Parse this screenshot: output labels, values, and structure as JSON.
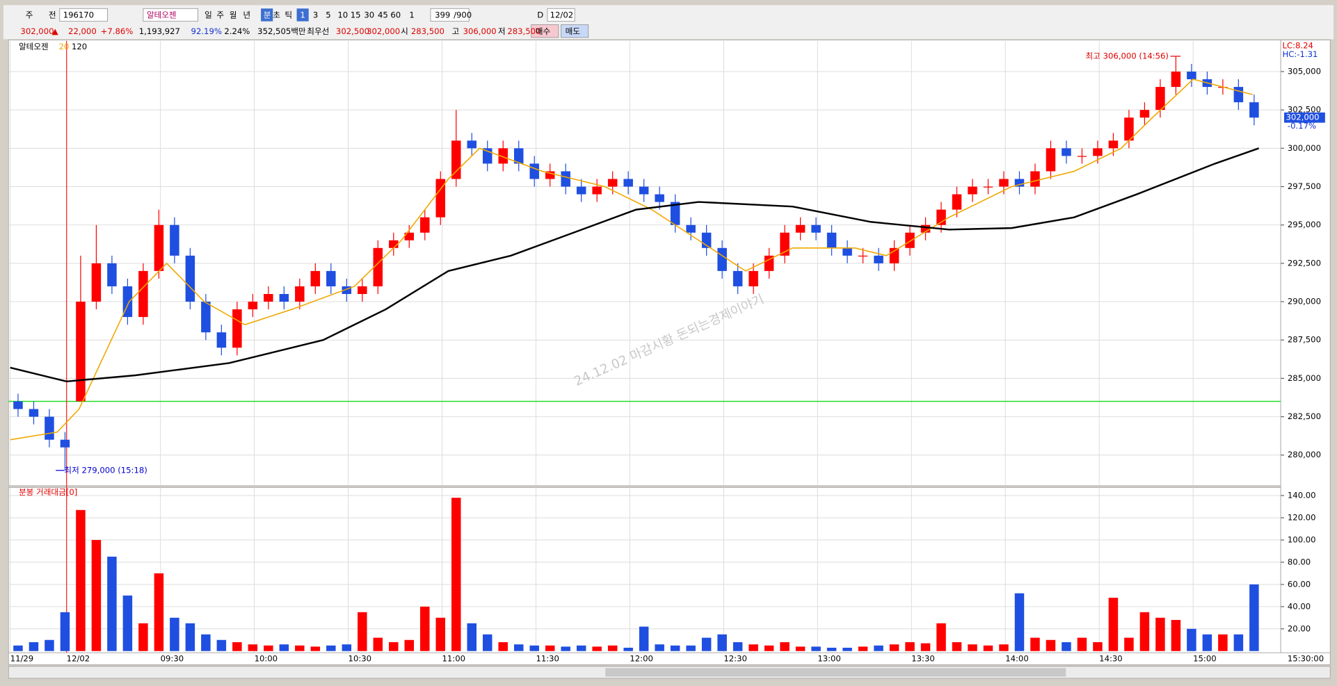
{
  "toolbar": {
    "row1": [
      "주",
      "전",
      "196170",
      "알테오젠",
      "일",
      "주",
      "월",
      "년",
      "분",
      "초",
      "틱",
      "1",
      "3",
      "5",
      "10",
      "15",
      "30",
      "45",
      "60",
      "1",
      "399",
      "/900",
      "D",
      "12/02"
    ],
    "row2": [
      "302,000",
      "▲",
      "22,000",
      "+7.86%",
      "1,193,927",
      "92.19%",
      "2.24%",
      "352,505백만",
      "최우선",
      "302,500",
      "302,000",
      "시",
      "283,500",
      "고",
      "306,000",
      "저",
      "283,500",
      "매수",
      "매도"
    ]
  },
  "chart_data": {
    "type": "candlestick",
    "legend_title": "알테오젠",
    "x": [
      0,
      5,
      10,
      15,
      20,
      25,
      30,
      35,
      40,
      45,
      50,
      55,
      60,
      65,
      70,
      75,
      80,
      85,
      90,
      95,
      100,
      105,
      110,
      115,
      120,
      125,
      130,
      135,
      140,
      145,
      150,
      155,
      160,
      165,
      170,
      175,
      180,
      185,
      190,
      195,
      200,
      205,
      210,
      215,
      220,
      225,
      230,
      235,
      240,
      245,
      250,
      255,
      260,
      265,
      270,
      275,
      280,
      285,
      290,
      295,
      300,
      305,
      310,
      315,
      320,
      325,
      330,
      335,
      340,
      345,
      350,
      355,
      360,
      365,
      370,
      375,
      380,
      385,
      390,
      395
    ],
    "open": [
      283500,
      283000,
      282500,
      281000,
      283500,
      290000,
      292500,
      291000,
      289000,
      292000,
      295000,
      293000,
      290000,
      288000,
      287000,
      289500,
      290000,
      290500,
      290000,
      291000,
      292000,
      291000,
      290500,
      291000,
      293500,
      294000,
      294500,
      295500,
      298000,
      300500,
      300000,
      299000,
      300000,
      299000,
      298000,
      298500,
      297500,
      297000,
      297500,
      298000,
      297500,
      297000,
      296500,
      295000,
      294500,
      293500,
      292000,
      291000,
      292000,
      293000,
      294500,
      295000,
      294500,
      293500,
      293000,
      293000,
      292500,
      293500,
      294500,
      295000,
      296000,
      297000,
      297500,
      297500,
      298000,
      297500,
      298500,
      300000,
      299500,
      299500,
      300000,
      300500,
      302000,
      302500,
      304000,
      305000,
      304500,
      304000,
      304000,
      303000
    ],
    "high": [
      284000,
      283500,
      283000,
      281500,
      293000,
      295000,
      293000,
      291500,
      292500,
      296000,
      295500,
      293500,
      290500,
      288500,
      290000,
      290500,
      291000,
      291000,
      291500,
      292500,
      292500,
      291500,
      291500,
      294000,
      294500,
      295000,
      296000,
      298500,
      302500,
      301000,
      300500,
      300500,
      300500,
      299500,
      299000,
      299000,
      298000,
      298000,
      298500,
      298500,
      298000,
      297500,
      297000,
      295500,
      295000,
      294000,
      292500,
      292500,
      293500,
      295000,
      295500,
      295500,
      295000,
      294000,
      293500,
      293500,
      294000,
      295000,
      295500,
      296500,
      297500,
      298000,
      298000,
      298500,
      298500,
      299000,
      300500,
      300500,
      300000,
      300500,
      301000,
      302500,
      303000,
      304500,
      306000,
      305500,
      305000,
      304500,
      304500,
      303500
    ],
    "low": [
      282500,
      282000,
      280500,
      279000,
      283500,
      289500,
      290500,
      288500,
      288500,
      291500,
      292500,
      289500,
      287500,
      286500,
      286500,
      289000,
      289500,
      289500,
      289500,
      290500,
      290500,
      290000,
      290000,
      290500,
      293000,
      293500,
      294000,
      295000,
      297500,
      299500,
      298500,
      298500,
      298500,
      297500,
      297500,
      297000,
      296500,
      296500,
      297000,
      297000,
      296500,
      296000,
      294500,
      294000,
      293000,
      291500,
      290500,
      290500,
      291500,
      292500,
      294000,
      294000,
      293000,
      292500,
      292500,
      292000,
      292000,
      293000,
      294000,
      294500,
      295500,
      296500,
      297000,
      297000,
      297000,
      297000,
      298000,
      299000,
      299000,
      299000,
      299500,
      300000,
      301500,
      302000,
      303500,
      304000,
      303500,
      303500,
      302500,
      301500
    ],
    "close": [
      283000,
      282500,
      281000,
      280500,
      290000,
      292500,
      291000,
      289000,
      292000,
      295000,
      293000,
      290000,
      288000,
      287000,
      289500,
      290000,
      290500,
      290000,
      291000,
      292000,
      291000,
      290500,
      291000,
      293500,
      294000,
      294500,
      295500,
      298000,
      300500,
      300000,
      299000,
      300000,
      299000,
      298000,
      298500,
      297500,
      297000,
      297500,
      298000,
      297500,
      297000,
      296500,
      295000,
      294500,
      293500,
      292000,
      291000,
      292000,
      293000,
      294500,
      295000,
      294500,
      293500,
      293000,
      293000,
      292500,
      293500,
      294500,
      295000,
      296000,
      297000,
      297500,
      297500,
      298000,
      297500,
      298500,
      300000,
      299500,
      299500,
      300000,
      300500,
      302000,
      302500,
      304000,
      305000,
      304500,
      304000,
      304000,
      303000,
      302000
    ],
    "up_color": "#ff0000",
    "down_color": "#1f4fe0",
    "xlim": [
      0,
      406
    ],
    "xticks": [
      {
        "value": 0,
        "label": "11/29"
      },
      {
        "value": 18,
        "label": "12/02"
      },
      {
        "value": 48,
        "label": "09:30"
      },
      {
        "value": 78,
        "label": "10:00"
      },
      {
        "value": 108,
        "label": "10:30"
      },
      {
        "value": 138,
        "label": "11:00"
      },
      {
        "value": 168,
        "label": "11:30"
      },
      {
        "value": 198,
        "label": "12:00"
      },
      {
        "value": 228,
        "label": "12:30"
      },
      {
        "value": 258,
        "label": "13:00"
      },
      {
        "value": 288,
        "label": "13:30"
      },
      {
        "value": 318,
        "label": "14:00"
      },
      {
        "value": 348,
        "label": "14:30"
      },
      {
        "value": 378,
        "label": "15:00"
      }
    ],
    "x_end_label": "15:30:00",
    "ylim": [
      278000,
      307000
    ],
    "yticks": [
      {
        "value": 280000,
        "label": "280,000"
      },
      {
        "value": 282500,
        "label": "282,500"
      },
      {
        "value": 285000,
        "label": "285,000"
      },
      {
        "value": 287500,
        "label": "287,500"
      },
      {
        "value": 290000,
        "label": "290,000"
      },
      {
        "value": 292500,
        "label": "292,500"
      },
      {
        "value": 295000,
        "label": "295,000"
      },
      {
        "value": 297500,
        "label": "297,500"
      },
      {
        "value": 300000,
        "label": "300,000"
      },
      {
        "value": 302500,
        "label": "302,500"
      },
      {
        "value": 305000,
        "label": "305,000"
      }
    ],
    "grid": true,
    "lines": [
      {
        "name": "20",
        "color": "#f0a800",
        "x": [
          0,
          15,
          22,
          38,
          50,
          62,
          75,
          90,
          110,
          125,
          140,
          150,
          170,
          190,
          205,
          220,
          235,
          250,
          270,
          280,
          300,
          320,
          340,
          355,
          365,
          378,
          397
        ],
        "values": [
          281000,
          281500,
          283000,
          290000,
          292500,
          290000,
          288500,
          289500,
          291000,
          294000,
          298000,
          300000,
          298500,
          297500,
          296000,
          294000,
          292000,
          293500,
          293500,
          293000,
          295500,
          297500,
          298500,
          300000,
          302000,
          304500,
          303500
        ]
      },
      {
        "name": "120",
        "color": "#000000",
        "x": [
          0,
          18,
          40,
          70,
          100,
          120,
          140,
          160,
          180,
          200,
          220,
          250,
          275,
          300,
          320,
          340,
          360,
          385,
          399
        ],
        "values": [
          285700,
          284800,
          285200,
          286000,
          287500,
          289500,
          292000,
          293000,
          294500,
          296000,
          296500,
          296200,
          295200,
          294700,
          294800,
          295500,
          297000,
          299000,
          300000
        ]
      }
    ],
    "hline": {
      "value": 283500,
      "color": "#22dd22"
    },
    "vline": {
      "value": 18,
      "color": "#ff2020"
    },
    "annotations": [
      {
        "text": "최고 306,000 (14:56)",
        "x": 374,
        "y": 306000,
        "color": "#e00000"
      },
      {
        "text": "최저 279,000 (15:18)",
        "x": 14,
        "y": 279000,
        "color": "#0000d0"
      }
    ],
    "watermark": "24.12.02 마감시황 돈되는경제이야기",
    "corner_labels": [
      "LC:8.24",
      "HC:-1.31"
    ],
    "last_price": {
      "value": 302000,
      "label": "302,000"
    },
    "last_change_label": "-0.17%",
    "volume": {
      "title": "분봉 거래대금[0]",
      "values": [
        5,
        8,
        10,
        35,
        127,
        100,
        85,
        50,
        25,
        70,
        30,
        25,
        15,
        10,
        8,
        6,
        5,
        6,
        5,
        4,
        5,
        6,
        35,
        12,
        8,
        10,
        40,
        30,
        138,
        25,
        15,
        8,
        6,
        5,
        5,
        4,
        5,
        4,
        5,
        3,
        22,
        6,
        5,
        5,
        12,
        15,
        8,
        6,
        5,
        8,
        4,
        4,
        3,
        3,
        4,
        5,
        6,
        8,
        7,
        25,
        8,
        6,
        5,
        6,
        52,
        12,
        10,
        8,
        12,
        8,
        48,
        12,
        35,
        30,
        28,
        20,
        15,
        15,
        15,
        60
      ],
      "ylim": [
        0,
        145
      ],
      "yticks": [
        {
          "value": 20,
          "label": "20.00"
        },
        {
          "value": 40,
          "label": "40.00"
        },
        {
          "value": 60,
          "label": "60.00"
        },
        {
          "value": 80,
          "label": "80.00"
        },
        {
          "value": 100,
          "label": "100.00"
        },
        {
          "value": 120,
          "label": "120.00"
        },
        {
          "value": 140,
          "label": "140.00"
        }
      ]
    }
  }
}
